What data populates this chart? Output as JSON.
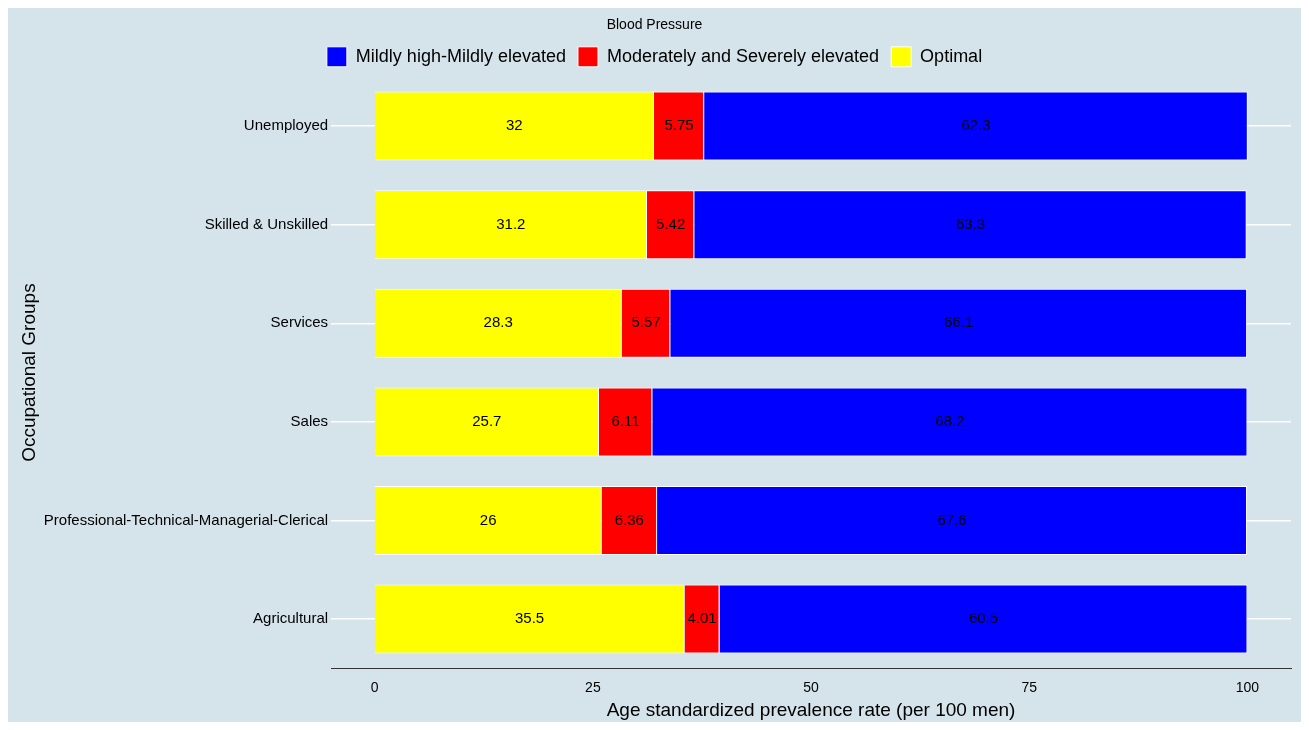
{
  "chart_data": {
    "type": "bar",
    "orientation": "horizontal",
    "stacked": true,
    "xlabel": "Age standardized prevalence rate (per 100 men)",
    "ylabel": "Occupational Groups",
    "legend_title": "Blood Pressure",
    "categories": [
      "Unemployed",
      "Skilled & Unskilled",
      "Services",
      "Sales",
      "Professional-Technical-Managerial-Clerical",
      "Agricultural"
    ],
    "series": [
      {
        "name": "Optimal",
        "color": "#ffff00",
        "values": [
          32,
          31.2,
          28.3,
          25.7,
          26,
          35.5
        ]
      },
      {
        "name": "Moderately and Severely elevated",
        "color": "#ff0000",
        "values": [
          5.75,
          5.42,
          5.57,
          6.11,
          6.36,
          4.01
        ]
      },
      {
        "name": "Mildly high-Mildly elevated",
        "color": "#0000ff",
        "values": [
          62.3,
          63.3,
          66.1,
          68.2,
          67.6,
          60.5
        ]
      }
    ],
    "xlim": [
      -5,
      105
    ],
    "xticks": [
      0,
      25,
      50,
      75,
      100
    ],
    "grid": "y",
    "legend": "top",
    "data_labels": true
  }
}
